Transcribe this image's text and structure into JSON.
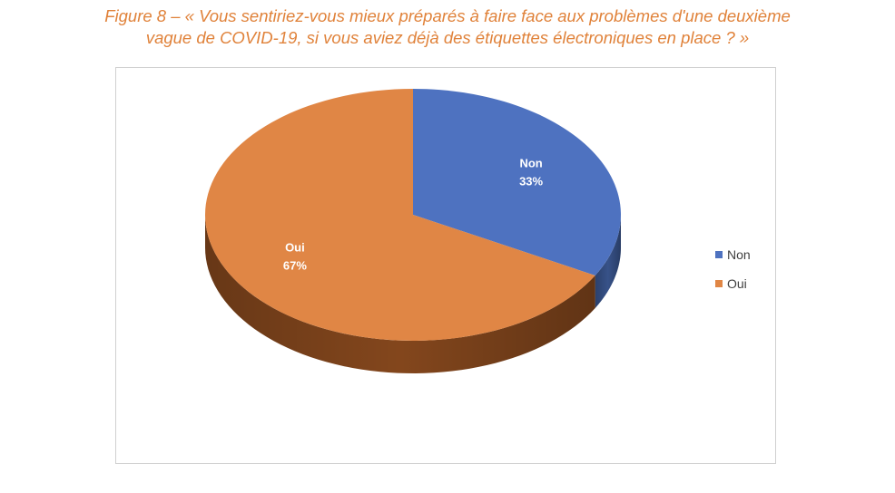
{
  "caption": {
    "line1": "Figure 8 – « Vous sentiriez-vous mieux préparés à faire face aux problèmes d'une deuxième",
    "line2": "vague de COVID-19, si vous aviez déjà des étiquettes électroniques en place ?  »",
    "color": "#E0823A"
  },
  "chart_data": {
    "type": "pie",
    "title": "",
    "style": "3d",
    "start_angle_deg": 0,
    "direction": "clockwise",
    "legend_position": "right",
    "categories": [
      "Non",
      "Oui"
    ],
    "values": [
      33,
      67
    ],
    "data_labels": [
      {
        "category": "Non",
        "value": "33%"
      },
      {
        "category": "Oui",
        "value": "67%"
      }
    ],
    "colors": [
      "#4E72C0",
      "#E08645"
    ],
    "side_colors": [
      "#3A5690",
      "#8A4A1E"
    ],
    "label_color": "#FFFFFF"
  },
  "legend": {
    "items": [
      {
        "label": "Non",
        "color": "#4E72C0"
      },
      {
        "label": "Oui",
        "color": "#E08645"
      }
    ]
  }
}
